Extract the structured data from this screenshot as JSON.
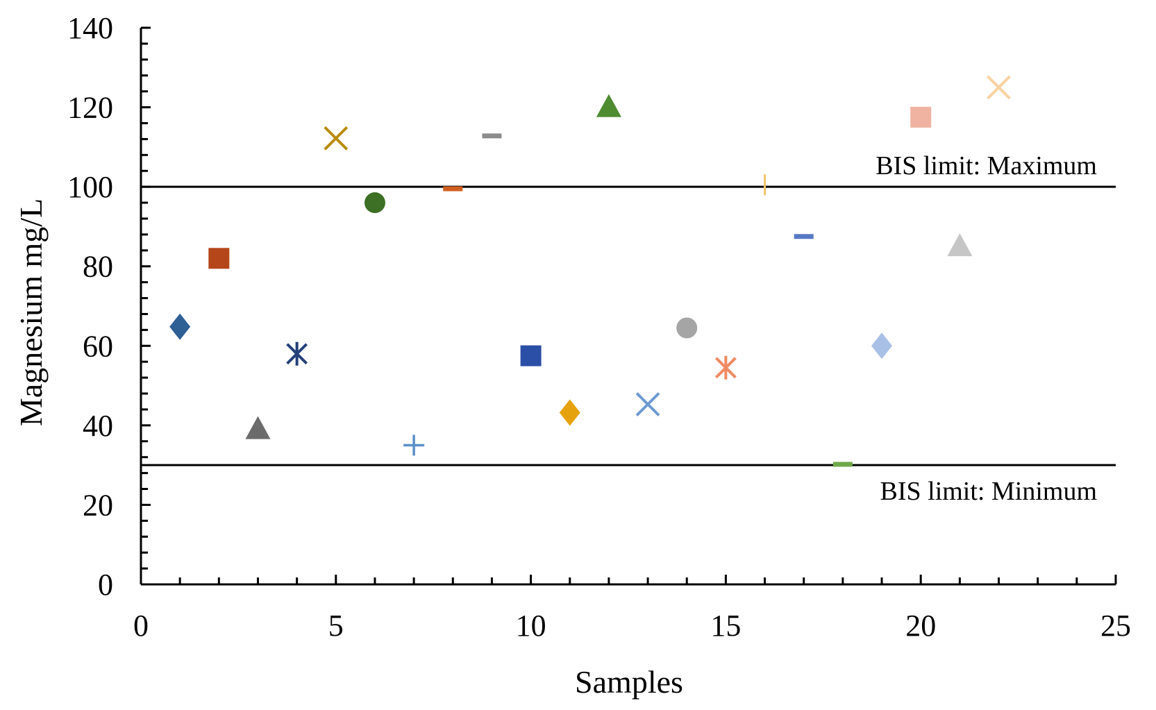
{
  "chart_data": {
    "type": "scatter",
    "title": "",
    "xlabel": "Samples",
    "ylabel": "Magnesium mg/L",
    "xlim": [
      0,
      25
    ],
    "ylim": [
      0,
      140
    ],
    "x_ticks": [
      "0",
      "5",
      "10",
      "15",
      "20",
      "25"
    ],
    "y_ticks": [
      "0",
      "20",
      "40",
      "60",
      "80",
      "100",
      "120",
      "140"
    ],
    "grid": false,
    "legend": "none",
    "reference_lines": [
      {
        "label": "BIS limit: Maximum",
        "y": 100
      },
      {
        "label": "BIS limit: Minimum",
        "y": 30
      }
    ],
    "points": [
      {
        "x": 1,
        "y": 64.8,
        "marker": "diamond",
        "color": "#2E5F95"
      },
      {
        "x": 2,
        "y": 82,
        "marker": "square",
        "color": "#B5461A"
      },
      {
        "x": 3,
        "y": 39,
        "marker": "triangle",
        "color": "#6B6B6B"
      },
      {
        "x": 4,
        "y": 58,
        "marker": "asterisk",
        "color": "#24407A"
      },
      {
        "x": 5,
        "y": 112.2,
        "marker": "x",
        "color": "#B88B0B"
      },
      {
        "x": 6,
        "y": 96,
        "marker": "circle",
        "color": "#3D6F24"
      },
      {
        "x": 7,
        "y": 35,
        "marker": "plus",
        "color": "#5A90C8"
      },
      {
        "x": 8,
        "y": 99.5,
        "marker": "dash",
        "color": "#D2601F"
      },
      {
        "x": 9,
        "y": 112.8,
        "marker": "dash",
        "color": "#8C8C8C"
      },
      {
        "x": 10,
        "y": 57.5,
        "marker": "square",
        "color": "#2B4FA6"
      },
      {
        "x": 11,
        "y": 43.2,
        "marker": "diamond",
        "color": "#E6A20C"
      },
      {
        "x": 12,
        "y": 120,
        "marker": "triangle",
        "color": "#4E8B31"
      },
      {
        "x": 13,
        "y": 45.3,
        "marker": "x",
        "color": "#6D99D2"
      },
      {
        "x": 14,
        "y": 64.5,
        "marker": "circle",
        "color": "#A5A5A5"
      },
      {
        "x": 15,
        "y": 54.5,
        "marker": "asterisk",
        "color": "#EF8A62"
      },
      {
        "x": 16,
        "y": 100.5,
        "marker": "vline",
        "color": "#F2C46A"
      },
      {
        "x": 17,
        "y": 87.5,
        "marker": "dash",
        "color": "#5679C4"
      },
      {
        "x": 18,
        "y": 30.2,
        "marker": "dash",
        "color": "#6FA84A"
      },
      {
        "x": 19,
        "y": 60,
        "marker": "diamond",
        "color": "#A9C0E6"
      },
      {
        "x": 20,
        "y": 117.5,
        "marker": "square",
        "color": "#F0B3A2"
      },
      {
        "x": 21,
        "y": 85,
        "marker": "triangle",
        "color": "#C6C6C6"
      },
      {
        "x": 22,
        "y": 125,
        "marker": "x",
        "color": "#F7D3A2"
      }
    ]
  }
}
